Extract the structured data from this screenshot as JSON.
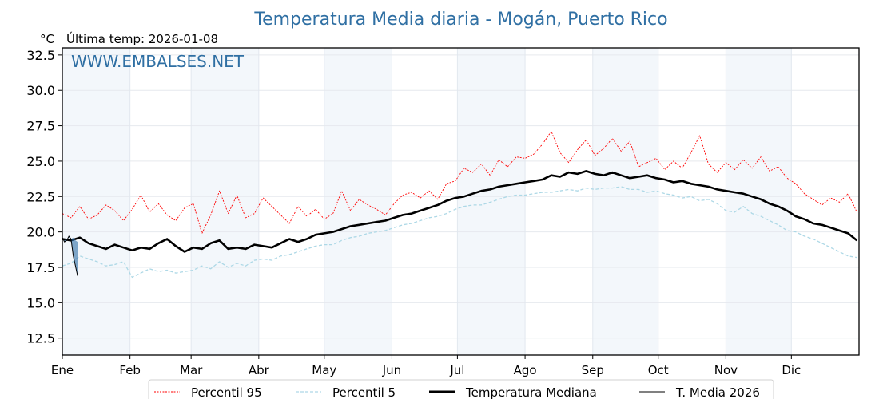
{
  "chart_data": {
    "type": "line",
    "title": "Temperatura Media diaria - Mogán, Puerto Rico",
    "unit_label": "°C",
    "subtitle": "Última temp: 2026-01-08",
    "watermark": "WWW.EMBALSES.NET",
    "xlabel": "",
    "ylabel": "°C",
    "ylim": [
      11.3,
      33.0
    ],
    "xlim": [
      0,
      365
    ],
    "grid": true,
    "y_ticks": [
      "12.5",
      "15.0",
      "17.5",
      "20.0",
      "22.5",
      "25.0",
      "27.5",
      "30.0",
      "32.5"
    ],
    "y_tick_values": [
      12.5,
      15.0,
      17.5,
      20.0,
      22.5,
      25.0,
      27.5,
      30.0,
      32.5
    ],
    "months": [
      "Ene",
      "Feb",
      "Mar",
      "Abr",
      "May",
      "Jun",
      "Jul",
      "Ago",
      "Sep",
      "Oct",
      "Nov",
      "Dic"
    ],
    "month_start_days": [
      0,
      31,
      59,
      90,
      120,
      151,
      181,
      212,
      243,
      273,
      304,
      334
    ],
    "shaded_months": [
      0,
      2,
      4,
      6,
      8,
      10
    ],
    "legend_position": "bottom-center",
    "x_days": [
      0,
      4,
      8,
      12,
      16,
      20,
      24,
      28,
      32,
      36,
      40,
      44,
      48,
      52,
      56,
      60,
      64,
      68,
      72,
      76,
      80,
      84,
      88,
      92,
      96,
      100,
      104,
      108,
      112,
      116,
      120,
      124,
      128,
      132,
      136,
      140,
      144,
      148,
      152,
      156,
      160,
      164,
      168,
      172,
      176,
      180,
      184,
      188,
      192,
      196,
      200,
      204,
      208,
      212,
      216,
      220,
      224,
      228,
      232,
      236,
      240,
      244,
      248,
      252,
      256,
      260,
      264,
      268,
      272,
      276,
      280,
      284,
      288,
      292,
      296,
      300,
      304,
      308,
      312,
      316,
      320,
      324,
      328,
      332,
      336,
      340,
      344,
      348,
      352,
      356,
      360,
      364
    ],
    "series": [
      {
        "name": "Percentil 95",
        "color": "#ff0000",
        "style": "dotted",
        "values": [
          21.3,
          21.0,
          21.8,
          20.9,
          21.2,
          21.9,
          21.5,
          20.8,
          21.6,
          22.6,
          21.4,
          22.0,
          21.2,
          20.8,
          21.7,
          22.0,
          19.9,
          21.2,
          22.9,
          21.3,
          22.6,
          21.0,
          21.3,
          22.4,
          21.8,
          21.2,
          20.6,
          21.8,
          21.1,
          21.6,
          20.9,
          21.3,
          22.9,
          21.5,
          22.3,
          21.9,
          21.6,
          21.2,
          22.0,
          22.6,
          22.8,
          22.4,
          22.9,
          22.3,
          23.4,
          23.6,
          24.5,
          24.2,
          24.8,
          24.0,
          25.1,
          24.6,
          25.3,
          25.2,
          25.5,
          26.2,
          27.1,
          25.6,
          24.9,
          25.8,
          26.5,
          25.4,
          25.9,
          26.6,
          25.7,
          26.4,
          24.6,
          24.9,
          25.2,
          24.4,
          25.0,
          24.5,
          25.6,
          26.8,
          24.8,
          24.2,
          24.9,
          24.4,
          25.1,
          24.5,
          25.3,
          24.3,
          24.6,
          23.8,
          23.4,
          22.7,
          22.3,
          21.9,
          22.4,
          22.1,
          22.7,
          21.4
        ]
      },
      {
        "name": "Percentil 5",
        "color": "#add8e6",
        "style": "dashed",
        "values": [
          17.6,
          17.8,
          18.3,
          18.1,
          17.9,
          17.6,
          17.7,
          17.9,
          16.8,
          17.1,
          17.4,
          17.2,
          17.3,
          17.1,
          17.2,
          17.3,
          17.6,
          17.4,
          17.9,
          17.5,
          17.8,
          17.6,
          18.0,
          18.1,
          18.0,
          18.3,
          18.4,
          18.6,
          18.8,
          19.0,
          19.1,
          19.1,
          19.4,
          19.6,
          19.7,
          19.9,
          20.0,
          20.1,
          20.3,
          20.5,
          20.6,
          20.8,
          21.0,
          21.1,
          21.3,
          21.6,
          21.8,
          21.9,
          21.9,
          22.1,
          22.3,
          22.5,
          22.6,
          22.6,
          22.7,
          22.8,
          22.8,
          22.9,
          23.0,
          22.9,
          23.1,
          23.0,
          23.1,
          23.1,
          23.2,
          23.0,
          23.0,
          22.8,
          22.9,
          22.7,
          22.6,
          22.4,
          22.5,
          22.2,
          22.3,
          22.0,
          21.5,
          21.4,
          21.8,
          21.3,
          21.1,
          20.8,
          20.5,
          20.1,
          20.0,
          19.7,
          19.5,
          19.2,
          18.9,
          18.6,
          18.3,
          18.2
        ]
      },
      {
        "name": "Temperatura Mediana",
        "color": "#000000",
        "style": "solid-bold",
        "values": [
          19.5,
          19.4,
          19.6,
          19.2,
          19.0,
          18.8,
          19.1,
          18.9,
          18.7,
          18.9,
          18.8,
          19.2,
          19.5,
          19.0,
          18.6,
          18.9,
          18.8,
          19.2,
          19.4,
          18.8,
          18.9,
          18.8,
          19.1,
          19.0,
          18.9,
          19.2,
          19.5,
          19.3,
          19.5,
          19.8,
          19.9,
          20.0,
          20.2,
          20.4,
          20.5,
          20.6,
          20.7,
          20.8,
          21.0,
          21.2,
          21.3,
          21.5,
          21.7,
          21.9,
          22.2,
          22.4,
          22.5,
          22.7,
          22.9,
          23.0,
          23.2,
          23.3,
          23.4,
          23.5,
          23.6,
          23.7,
          24.0,
          23.9,
          24.2,
          24.1,
          24.3,
          24.1,
          24.0,
          24.2,
          24.0,
          23.8,
          23.9,
          24.0,
          23.8,
          23.7,
          23.5,
          23.6,
          23.4,
          23.3,
          23.2,
          23.0,
          22.9,
          22.8,
          22.7,
          22.5,
          22.3,
          22.0,
          21.8,
          21.5,
          21.1,
          20.9,
          20.6,
          20.5,
          20.3,
          20.1,
          19.9,
          19.4
        ]
      }
    ],
    "current_year": {
      "name": "T. Media 2026",
      "color": "#000000",
      "fill_color": "#2e6ea6",
      "x_days": [
        0,
        1,
        2,
        3,
        4,
        5,
        6,
        7
      ],
      "values": [
        19.6,
        19.3,
        19.4,
        19.7,
        19.5,
        18.3,
        17.6,
        16.9
      ],
      "median_ref": [
        19.5,
        19.4,
        19.5,
        19.6,
        19.5,
        19.6,
        19.4,
        19.3
      ]
    }
  }
}
